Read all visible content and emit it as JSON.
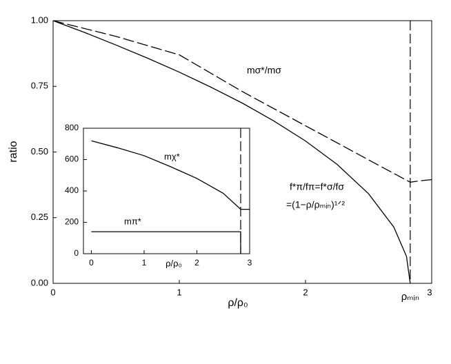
{
  "chart_data": [
    {
      "type": "line",
      "x_label": "ρ/ρ₀",
      "y_label": "ratio",
      "xlim": [
        0,
        3
      ],
      "ylim": [
        0,
        1
      ],
      "xticks": [
        0,
        1,
        2,
        {
          "value": 2.83,
          "label": "ρₘᵢₙ"
        },
        3
      ],
      "yticks": [
        {
          "value": 0,
          "label": "0.00"
        },
        {
          "value": 0.25,
          "label": "0.25"
        },
        {
          "value": 0.5,
          "label": "0.50"
        },
        {
          "value": 0.75,
          "label": "0.75"
        },
        {
          "value": 1,
          "label": "1.00"
        }
      ],
      "series": [
        {
          "name": "mσ*/mσ",
          "color": "#000000",
          "dash": true,
          "x": [
            0,
            0.5,
            1,
            1.5,
            2,
            2.5,
            2.83,
            2.9,
            3
          ],
          "values": [
            1,
            0.94,
            0.87,
            0.73,
            0.6,
            0.47,
            0.385,
            0.39,
            0.395
          ]
        },
        {
          "name": "f*π/fπ=f*σ/fσ",
          "color": "#000000",
          "dash": false,
          "x": [
            0,
            0.25,
            0.5,
            0.75,
            1,
            1.25,
            1.5,
            1.75,
            2,
            2.25,
            2.5,
            2.7,
            2.8,
            2.83
          ],
          "values": [
            1,
            0.955,
            0.907,
            0.857,
            0.804,
            0.747,
            0.686,
            0.618,
            0.542,
            0.453,
            0.341,
            0.214,
            0.103,
            0
          ]
        }
      ],
      "annotation": "=(1−ρ/ρₘᵢₙ)¹ᐟ²"
    },
    {
      "type": "line",
      "x_label": "ρ/ρ₀",
      "xlim": [
        -0.15,
        3
      ],
      "ylim": [
        0,
        800
      ],
      "xticks": [
        0,
        1,
        2,
        2.83,
        3
      ],
      "yticks": [
        0,
        200,
        400,
        600,
        800
      ],
      "series": [
        {
          "name": "mχ*",
          "color": "#000000",
          "dash": false,
          "x": [
            0,
            0.5,
            1,
            1.5,
            2,
            2.5,
            2.83,
            3
          ],
          "values": [
            720,
            675,
            625,
            555,
            480,
            385,
            283,
            283
          ]
        },
        {
          "name": "mπ*",
          "color": "#000000",
          "dash": false,
          "x": [
            0,
            2.83,
            2.83
          ],
          "values": [
            140,
            140,
            0
          ]
        }
      ]
    }
  ]
}
